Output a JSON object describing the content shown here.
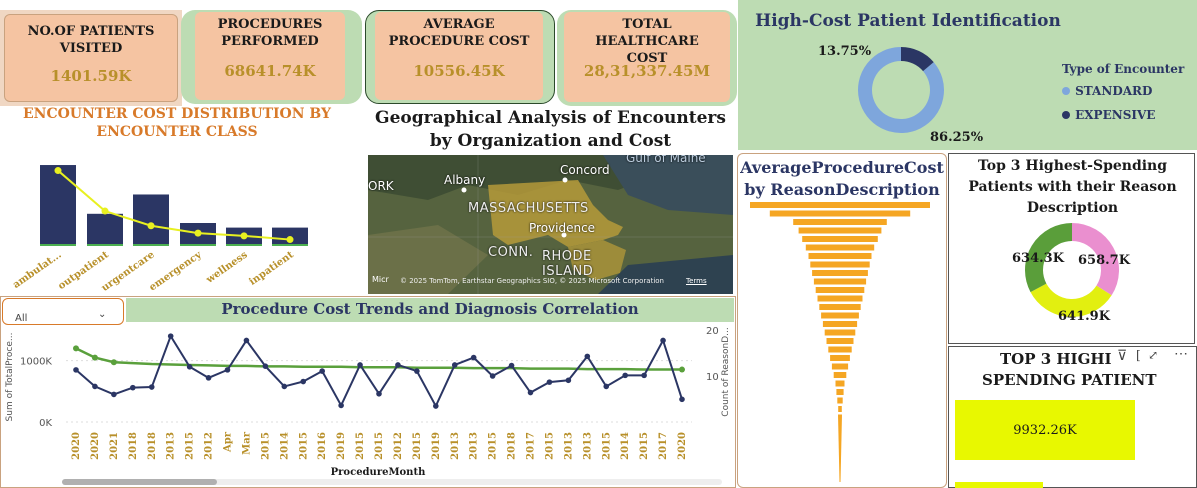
{
  "kpis": [
    {
      "label": "NO.OF PATIENTS VISITED",
      "value": "1401.59K"
    },
    {
      "label": "PROCEDURES PERFORMED",
      "value": "68641.74K"
    },
    {
      "label": "AVERAGE PROCEDURE COST",
      "value": "10556.45K"
    },
    {
      "label": "TOTAL HEALTHCARE COST",
      "value": "28,31,337.45M"
    }
  ],
  "encounter_chart": {
    "title": "ENCOUNTER COST DISTRIBUTION BY ENCOUNTER CLASS",
    "categories": [
      "ambulat...",
      "outpatient",
      "urgentcare",
      "emergency",
      "wellness",
      "inpatient"
    ]
  },
  "geo": {
    "title": "Geographical Analysis of Encounters by Organization and Cost",
    "labels": {
      "york": "ORK",
      "albany": "Albany",
      "concord": "Concord",
      "gulf": "Gulf of Maine",
      "massachusetts": "MASSACHUSETTS",
      "providence": "Providence",
      "conn": "CONN.",
      "rhode1": "RHODE",
      "rhode2": "ISLAND"
    },
    "attribution": "© 2025 TomTom, Earthstar Geographics SIO, © 2025 Microsoft Corporation",
    "terms": "Terms",
    "brand": "Micr"
  },
  "high_cost": {
    "title": "High-Cost Patient Identification",
    "legend_title": "Type of Encounter",
    "legend": [
      {
        "name": "STANDARD",
        "color": "#7ea6dc"
      },
      {
        "name": "EXPENSIVE",
        "color": "#2b3664"
      }
    ]
  },
  "avg_reason": {
    "title_line1": "AverageProcedureCost",
    "title_line2": "by ReasonDescription"
  },
  "top3": {
    "title": "Top 3 Highest-Spending Patients with their Reason Description"
  },
  "top3_spending": {
    "title_line1": "TOP 3 HIGHI",
    "title_line2": "SPENDING PATIENT",
    "bar_value": "9932.26K"
  },
  "trends": {
    "title": "Procedure Cost Trends and Diagnosis Correlation",
    "filter_value": "All",
    "ylabel_left": "Sum of TotalProce...",
    "ylabel_right": "Count of ReasonD...",
    "xlabel": "ProcedureMonth",
    "left_ticks": [
      "1000K",
      "0K"
    ],
    "right_ticks": [
      "20",
      "10"
    ]
  },
  "chart_data": [
    {
      "type": "bar",
      "title": "ENCOUNTER COST DISTRIBUTION BY ENCOUNTER CLASS",
      "categories": [
        "ambulat...",
        "outpatient",
        "urgentcare",
        "emergency",
        "wellness",
        "inpatient"
      ],
      "series": [
        {
          "values": [
            88,
            35,
            56,
            25,
            20,
            20
          ],
          "color": "#2b3664"
        },
        {
          "values": [
            82,
            38,
            22,
            14,
            11,
            7
          ],
          "color": "#e8f020"
        }
      ]
    },
    {
      "type": "pie",
      "title": "High-Cost Patient Identification",
      "labels": [
        "STANDARD",
        "EXPENSIVE"
      ],
      "values": [
        86.25,
        13.75
      ],
      "display": [
        "86.25%",
        "13.75%"
      ]
    },
    {
      "type": "pie",
      "title": "Top 3 Highest-Spending Patients with their Reason Description",
      "values": [
        658.7,
        641.9,
        634.3
      ],
      "display": [
        "658.7K",
        "641.9K",
        "634.3K"
      ],
      "colors": [
        "#ea8fcf",
        "#e2ef10",
        "#5a9e3a"
      ]
    },
    {
      "type": "bar",
      "title": "AverageProcedureCost by ReasonDescription",
      "values": [
        100,
        78,
        52,
        46,
        42,
        38,
        35,
        33,
        31,
        29,
        27,
        25,
        23,
        21,
        19,
        17,
        15,
        13,
        11,
        9,
        7,
        5,
        4,
        3,
        2
      ]
    },
    {
      "type": "line",
      "title": "Procedure Cost Trends and Diagnosis Correlation",
      "xlabel": "ProcedureMonth",
      "x": [
        "2020",
        "2020",
        "2021",
        "2018",
        "2018",
        "2013",
        "2015",
        "2012",
        "Apr",
        "Mar",
        "2015",
        "2014",
        "2015",
        "2016",
        "2019",
        "2015",
        "2015",
        "2012",
        "2015",
        "2019",
        "2013",
        "2013",
        "2015",
        "2018",
        "2017",
        "2015",
        "2013",
        "2013",
        "2015",
        "2014",
        "2015",
        "2017",
        "2020"
      ],
      "series": [
        {
          "name": "Sum of TotalProce...",
          "axis": "left",
          "values": [
            850,
            580,
            450,
            560,
            570,
            1400,
            900,
            720,
            850,
            1330,
            910,
            580,
            660,
            830,
            270,
            930,
            460,
            930,
            830,
            260,
            930,
            1050,
            750,
            920,
            480,
            650,
            680,
            1070,
            580,
            760,
            760,
            1330,
            370
          ]
        },
        {
          "name": "Count of ReasonD...",
          "axis": "right",
          "values": [
            16,
            14,
            13,
            12.8,
            12.6,
            12.5,
            12.4,
            12.3,
            12.2,
            12.2,
            12.1,
            12.1,
            12.0,
            12.0,
            12.0,
            11.9,
            11.9,
            11.9,
            11.8,
            11.8,
            11.8,
            11.7,
            11.7,
            11.7,
            11.6,
            11.6,
            11.6,
            11.5,
            11.5,
            11.5,
            11.4,
            11.4,
            11.4
          ]
        }
      ],
      "ylim_left": [
        0,
        1500
      ],
      "ylim_right": [
        0,
        20
      ]
    }
  ]
}
